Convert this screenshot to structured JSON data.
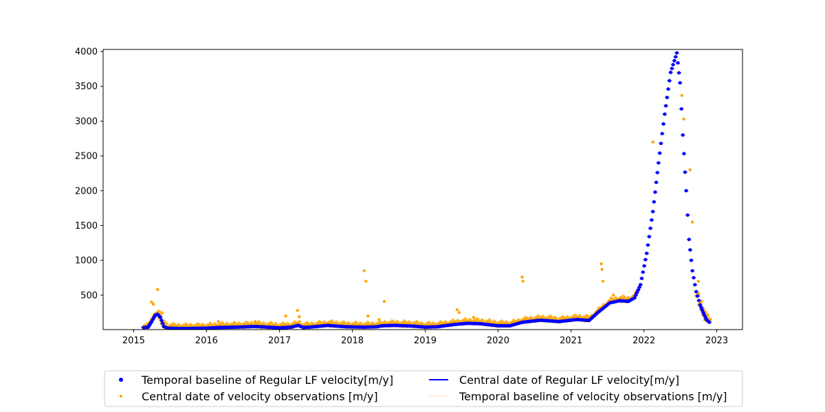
{
  "chart_data": {
    "type": "scatter",
    "title": "",
    "xlabel": "",
    "ylabel": "",
    "x_ticks": [
      "2015",
      "2016",
      "2017",
      "2018",
      "2019",
      "2020",
      "2021",
      "2022",
      "2023"
    ],
    "y_ticks": [
      "500",
      "1000",
      "1500",
      "2000",
      "2500",
      "3000",
      "3500",
      "4000"
    ],
    "xlim": [
      "2014-08-01",
      "2023-05-10"
    ],
    "ylim": [
      5,
      4030
    ],
    "grid": false,
    "legend_placement": "below plot, two columns",
    "series": [
      {
        "name": "Temporal baseline of Regular LF velocity[m/y]",
        "marker": "dot",
        "color": "#0000ff",
        "points": [
          [
            "2015-02-20",
            35
          ],
          [
            "2015-03-15",
            40
          ],
          [
            "2015-04-01",
            120
          ],
          [
            "2015-04-20",
            215
          ],
          [
            "2015-05-01",
            225
          ],
          [
            "2015-05-15",
            180
          ],
          [
            "2015-06-01",
            50
          ],
          [
            "2015-06-20",
            25
          ],
          [
            "2015-09-01",
            20
          ],
          [
            "2016-01-01",
            25
          ],
          [
            "2016-03-01",
            35
          ],
          [
            "2016-06-01",
            40
          ],
          [
            "2016-09-01",
            50
          ],
          [
            "2017-01-01",
            30
          ],
          [
            "2017-03-01",
            40
          ],
          [
            "2017-04-05",
            65
          ],
          [
            "2017-05-01",
            35
          ],
          [
            "2017-06-01",
            40
          ],
          [
            "2017-09-01",
            65
          ],
          [
            "2017-12-01",
            45
          ],
          [
            "2018-03-01",
            40
          ],
          [
            "2018-05-01",
            45
          ],
          [
            "2018-06-01",
            60
          ],
          [
            "2018-08-01",
            65
          ],
          [
            "2018-11-01",
            55
          ],
          [
            "2019-01-01",
            40
          ],
          [
            "2019-03-01",
            45
          ],
          [
            "2019-06-01",
            80
          ],
          [
            "2019-08-01",
            95
          ],
          [
            "2019-10-01",
            90
          ],
          [
            "2020-01-01",
            60
          ],
          [
            "2020-03-01",
            60
          ],
          [
            "2020-05-01",
            110
          ],
          [
            "2020-08-01",
            140
          ],
          [
            "2020-11-01",
            120
          ],
          [
            "2021-02-01",
            150
          ],
          [
            "2021-04-01",
            135
          ],
          [
            "2021-05-15",
            250
          ],
          [
            "2021-07-15",
            390
          ],
          [
            "2021-09-01",
            420
          ],
          [
            "2021-10-15",
            410
          ],
          [
            "2021-11-15",
            460
          ],
          [
            "2021-12-15",
            650
          ],
          [
            "2022-01-15",
            1100
          ],
          [
            "2022-02-15",
            1700
          ],
          [
            "2022-03-15",
            2400
          ],
          [
            "2022-04-15",
            3100
          ],
          [
            "2022-05-15",
            3700
          ],
          [
            "2022-06-15",
            3980
          ],
          [
            "2022-07-01",
            3550
          ],
          [
            "2022-07-15",
            2800
          ],
          [
            "2022-08-01",
            2000
          ],
          [
            "2022-08-15",
            1300
          ],
          [
            "2022-09-01",
            850
          ],
          [
            "2022-09-20",
            550
          ],
          [
            "2022-10-10",
            360
          ],
          [
            "2022-10-25",
            250
          ],
          [
            "2022-11-10",
            150
          ],
          [
            "2022-11-25",
            110
          ]
        ]
      },
      {
        "name": "Central date of velocity observations [m/y]",
        "marker": "dot",
        "color": "#ffa500",
        "points": [
          [
            "2015-04-01",
            400
          ],
          [
            "2015-04-10",
            370
          ],
          [
            "2015-05-01",
            580
          ],
          [
            "2016-03-01",
            120
          ],
          [
            "2016-09-01",
            120
          ],
          [
            "2017-02-01",
            200
          ],
          [
            "2017-04-01",
            280
          ],
          [
            "2017-04-10",
            190
          ],
          [
            "2018-03-01",
            850
          ],
          [
            "2018-03-10",
            700
          ],
          [
            "2018-03-20",
            200
          ],
          [
            "2018-05-15",
            150
          ],
          [
            "2018-06-10",
            410
          ],
          [
            "2019-06-10",
            290
          ],
          [
            "2019-06-20",
            250
          ],
          [
            "2019-09-01",
            180
          ],
          [
            "2020-05-01",
            760
          ],
          [
            "2020-05-05",
            700
          ],
          [
            "2021-06-01",
            950
          ],
          [
            "2021-06-05",
            870
          ],
          [
            "2021-06-10",
            700
          ],
          [
            "2021-08-01",
            500
          ],
          [
            "2022-02-15",
            2700
          ],
          [
            "2022-07-10",
            3370
          ],
          [
            "2022-07-20",
            3030
          ],
          [
            "2022-08-20",
            2300
          ],
          [
            "2022-09-01",
            1550
          ],
          [
            "2022-10-01",
            700
          ],
          [
            "2022-12-01",
            150
          ]
        ]
      },
      {
        "name": "Central date of Regular LF velocity[m/y]",
        "marker": "line",
        "color": "#0000ff"
      },
      {
        "name": "Temporal baseline of velocity observations [m/y]",
        "marker": "line",
        "color": "#ffa500"
      }
    ]
  }
}
